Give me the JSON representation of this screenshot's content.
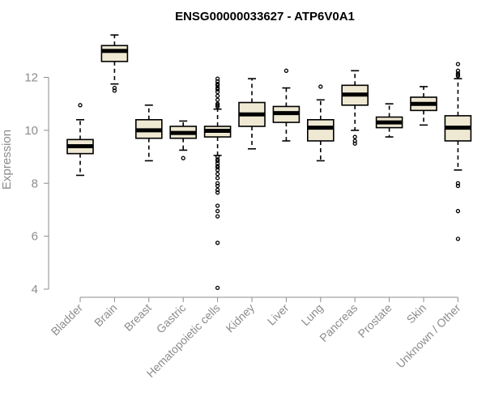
{
  "chart_data": {
    "type": "boxplot",
    "title": "ENSG00000033627 - ATP6V0A1",
    "xlabel": "",
    "ylabel": "Expression",
    "ylim": [
      4,
      13.7
    ],
    "yticks": [
      4,
      6,
      8,
      10,
      12
    ],
    "box_fill": "#efe9d3",
    "line_color": "#000000",
    "axis_color": "#8c8c8c",
    "categories": [
      "Bladder",
      "Brain",
      "Breast",
      "Gastric",
      "Hematopoietic cells",
      "Kidney",
      "Liver",
      "Lung",
      "Pancreas",
      "Prostate",
      "Skin",
      "Unknown / Other"
    ],
    "boxes": [
      {
        "category": "Bladder",
        "whisker_low": 8.3,
        "q1": 9.12,
        "median": 9.4,
        "q3": 9.65,
        "whisker_high": 10.4,
        "outliers": [
          10.95
        ]
      },
      {
        "category": "Brain",
        "whisker_low": 11.75,
        "q1": 12.6,
        "median": 13.0,
        "q3": 13.2,
        "whisker_high": 13.6,
        "outliers": [
          11.5,
          11.6
        ]
      },
      {
        "category": "Breast",
        "whisker_low": 8.85,
        "q1": 9.7,
        "median": 10.0,
        "q3": 10.4,
        "whisker_high": 10.95,
        "outliers": []
      },
      {
        "category": "Gastric",
        "whisker_low": 9.25,
        "q1": 9.7,
        "median": 9.9,
        "q3": 10.15,
        "whisker_high": 10.35,
        "outliers": [
          8.95
        ]
      },
      {
        "category": "Hematopoietic cells",
        "whisker_low": 9.05,
        "q1": 9.75,
        "median": 9.98,
        "q3": 10.15,
        "whisker_high": 10.8,
        "outliers": [
          4.05,
          5.75,
          6.75,
          6.95,
          7.15,
          7.65,
          7.75,
          7.9,
          8.0,
          8.2,
          8.35,
          8.5,
          8.6,
          8.65,
          8.75,
          8.85,
          8.9,
          9.0,
          10.9,
          10.95,
          11.0,
          11.15,
          11.3,
          11.45,
          11.55,
          11.6,
          11.7,
          11.75,
          11.85,
          11.95
        ]
      },
      {
        "category": "Kidney",
        "whisker_low": 9.3,
        "q1": 10.15,
        "median": 10.6,
        "q3": 11.05,
        "whisker_high": 11.95,
        "outliers": []
      },
      {
        "category": "Liver",
        "whisker_low": 9.6,
        "q1": 10.3,
        "median": 10.65,
        "q3": 10.9,
        "whisker_high": 11.6,
        "outliers": [
          12.25
        ]
      },
      {
        "category": "Lung",
        "whisker_low": 8.85,
        "q1": 9.6,
        "median": 10.1,
        "q3": 10.4,
        "whisker_high": 11.15,
        "outliers": [
          11.65
        ]
      },
      {
        "category": "Pancreas",
        "whisker_low": 10.0,
        "q1": 10.95,
        "median": 11.35,
        "q3": 11.7,
        "whisker_high": 12.25,
        "outliers": [
          9.5,
          9.6,
          9.75
        ]
      },
      {
        "category": "Prostate",
        "whisker_low": 9.75,
        "q1": 10.1,
        "median": 10.3,
        "q3": 10.5,
        "whisker_high": 11.0,
        "outliers": []
      },
      {
        "category": "Skin",
        "whisker_low": 10.2,
        "q1": 10.75,
        "median": 11.0,
        "q3": 11.25,
        "whisker_high": 11.65,
        "outliers": []
      },
      {
        "category": "Unknown / Other",
        "whisker_low": 8.5,
        "q1": 9.6,
        "median": 10.1,
        "q3": 10.55,
        "whisker_high": 11.95,
        "outliers": [
          5.9,
          6.95,
          7.9,
          8.0,
          12.05,
          12.1,
          12.15,
          12.25,
          12.5
        ]
      }
    ]
  }
}
